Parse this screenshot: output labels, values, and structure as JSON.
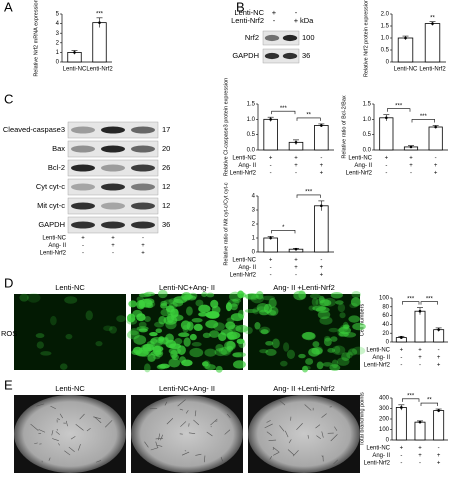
{
  "panel_labels": [
    "A",
    "B",
    "C",
    "D",
    "E"
  ],
  "conditions": {
    "rows": [
      "Lenti-NC",
      "Ang- II",
      "Lenti-Nrf2"
    ],
    "signs": [
      [
        "+",
        "+",
        "-"
      ],
      [
        "-",
        "+",
        "+"
      ],
      [
        "-",
        "-",
        "+"
      ]
    ]
  },
  "blot_b": {
    "rows": [
      "Lenti-NC",
      "Lenti-Nrf2"
    ],
    "signs": [
      [
        "+",
        "-"
      ],
      [
        "-",
        "+"
      ]
    ],
    "unit": "kDa",
    "bands": [
      {
        "name": "Nrf2",
        "kda": 100
      },
      {
        "name": "GAPDH",
        "kda": 36
      }
    ]
  },
  "blot_c": {
    "bands": [
      {
        "name": "Cleaved-caspase3",
        "kda": 17
      },
      {
        "name": "Bax",
        "kda": 20
      },
      {
        "name": "Bcl-2",
        "kda": 26
      },
      {
        "name": "Cyt cyt-c",
        "kda": 12
      },
      {
        "name": "Mit cyt-c",
        "kda": 12
      },
      {
        "name": "GAPDH",
        "kda": 36
      }
    ]
  },
  "ros": {
    "label": "ROS",
    "titles": [
      "Lenti-NC",
      "Lenti-NC+Ang- II",
      "Ang- II +Lenti-Nrf2"
    ]
  },
  "tube": {
    "titles": [
      "Lenti-NC",
      "Lenti-NC+Ang- II",
      "Ang- II +Lenti-Nrf2"
    ]
  },
  "chart_data": [
    {
      "type": "bar",
      "ylabel": "Relative Nrf2 mRNA expression",
      "categories": [
        "Lenti-NC",
        "Lenti-Nrf2"
      ],
      "values": [
        1,
        4.1
      ],
      "errors": [
        0.2,
        0.5
      ],
      "ylim": [
        0,
        5
      ],
      "yticks": [
        0,
        1,
        2,
        3,
        4,
        5
      ],
      "annotations": [
        "***"
      ],
      "color": "#ffffff"
    },
    {
      "type": "bar",
      "ylabel": "Relative Nrf2 protein expression",
      "categories": [
        "Lenti-NC",
        "Lenti-Nrf2"
      ],
      "values": [
        1.0,
        1.6
      ],
      "errors": [
        0.08,
        0.08
      ],
      "ylim": [
        0,
        2
      ],
      "yticks": [
        0,
        0.5,
        {
          "value": 1,
          "label": "1.0"
        },
        1.5,
        {
          "value": 2,
          "label": "2.0"
        }
      ],
      "annotations": [
        "**"
      ],
      "color": "#ffffff"
    },
    {
      "type": "bar",
      "ylabel": "Relative Cl-caspase3 protein expression",
      "categories": [
        null,
        null,
        null
      ],
      "values": [
        1.0,
        0.25,
        0.8
      ],
      "errors": [
        0.07,
        0.08,
        0.05
      ],
      "ylim": [
        0,
        1.5
      ],
      "yticks": [
        {
          "value": 0,
          "label": "0.0"
        },
        0.5,
        {
          "value": 1,
          "label": "1.0"
        },
        1.5
      ],
      "annotations": [
        "***",
        "**"
      ],
      "color": "#ffffff"
    },
    {
      "type": "bar",
      "ylabel": "Relative ratio of Bcl-2/Bax",
      "categories": [
        null,
        null,
        null
      ],
      "values": [
        1.05,
        0.1,
        0.75
      ],
      "errors": [
        0.1,
        0.04,
        0.05
      ],
      "ylim": [
        0,
        1.5
      ],
      "yticks": [
        {
          "value": 0,
          "label": "0.0"
        },
        0.5,
        {
          "value": 1,
          "label": "1.0"
        },
        1.5
      ],
      "annotations": [
        "***",
        "***"
      ],
      "color": "#ffffff"
    },
    {
      "type": "bar",
      "ylabel": "Relative ratio of Mit cyt-c/Cyt cyt-c",
      "categories": [
        null,
        null,
        null
      ],
      "values": [
        1.0,
        0.2,
        3.3
      ],
      "errors": [
        0.12,
        0.06,
        0.35
      ],
      "ylim": [
        0,
        4
      ],
      "yticks": [
        0,
        1,
        2,
        3,
        4
      ],
      "annotations": [
        "*",
        "***"
      ],
      "color": "#ffffff"
    },
    {
      "type": "bar",
      "ylabel": "Cell numbers",
      "categories": [
        null,
        null,
        null
      ],
      "values": [
        10,
        70,
        28
      ],
      "errors": [
        3,
        8,
        4
      ],
      "ylim": [
        0,
        100
      ],
      "yticks": [
        0,
        20,
        40,
        60,
        80,
        100
      ],
      "annotations": [
        "***",
        "***"
      ],
      "color": "#ffffff"
    },
    {
      "type": "bar",
      "ylabel": "Total branching points",
      "categories": [
        null,
        null,
        null
      ],
      "values": [
        310,
        170,
        280
      ],
      "errors": [
        25,
        12,
        15
      ],
      "ylim": [
        0,
        400
      ],
      "yticks": [
        0,
        100,
        200,
        300,
        400
      ],
      "annotations": [
        "***",
        "**"
      ],
      "color": "#ffffff"
    }
  ]
}
